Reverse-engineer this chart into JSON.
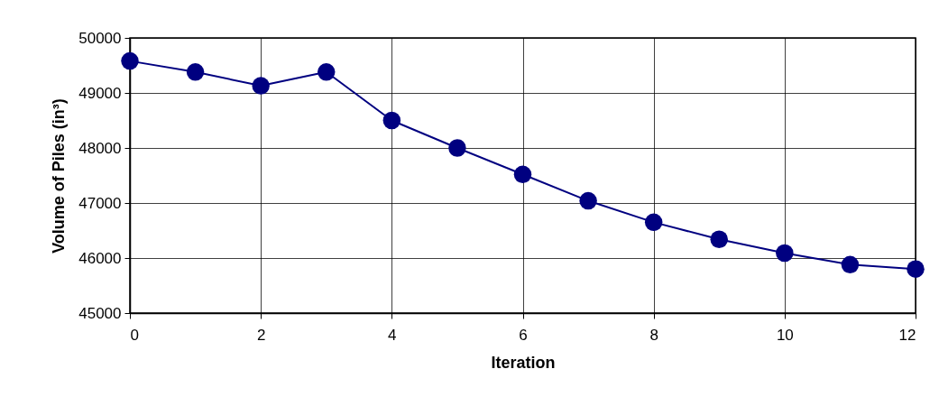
{
  "chart_data": {
    "type": "line",
    "xlabel": "Iteration",
    "ylabel": "Volume of Piles (in³)",
    "x": [
      0,
      1,
      2,
      3,
      4,
      5,
      6,
      7,
      8,
      9,
      10,
      11,
      12
    ],
    "series": [
      {
        "color": "#000080",
        "values": [
          49580,
          49380,
          49130,
          49380,
          48500,
          48000,
          47520,
          47040,
          46650,
          46340,
          46090,
          45880,
          45800
        ]
      }
    ],
    "xlim": [
      0,
      12
    ],
    "xticks": [
      0,
      2,
      4,
      6,
      8,
      10,
      12
    ],
    "ylim": [
      45000,
      50000
    ],
    "yticks": [
      45000,
      46000,
      47000,
      48000,
      49000,
      50000
    ],
    "grid": true,
    "marker": "circle",
    "line_style": "solid"
  }
}
